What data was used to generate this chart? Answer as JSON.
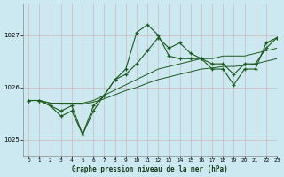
{
  "title": "Graphe pression niveau de la mer (hPa)",
  "bg_color": "#cce8f0",
  "line_color": "#1a5c1a",
  "xlim": [
    -0.5,
    23
  ],
  "ylim": [
    1024.7,
    1027.6
  ],
  "yticks": [
    1025,
    1026,
    1027
  ],
  "xticks": [
    0,
    1,
    2,
    3,
    4,
    5,
    6,
    7,
    8,
    9,
    10,
    11,
    12,
    13,
    14,
    15,
    16,
    17,
    18,
    19,
    20,
    21,
    22,
    23
  ],
  "series_main": {
    "x": [
      0,
      1,
      2,
      3,
      4,
      5,
      6,
      7,
      8,
      9,
      10,
      11,
      12,
      13,
      14,
      15,
      16,
      17,
      18,
      19,
      20,
      21,
      22,
      23
    ],
    "y": [
      1025.75,
      1025.75,
      1025.65,
      1025.55,
      1025.65,
      1025.1,
      1025.65,
      1025.85,
      1026.15,
      1026.35,
      1027.05,
      1027.2,
      1027.0,
      1026.6,
      1026.55,
      1026.55,
      1026.55,
      1026.35,
      1026.35,
      1026.05,
      1026.35,
      1026.35,
      1026.85,
      1026.95
    ]
  },
  "series_wide": {
    "x": [
      0,
      1,
      2,
      3,
      4,
      5,
      6,
      7,
      8,
      9,
      10,
      11,
      12,
      13,
      14,
      15,
      16,
      17,
      18,
      19,
      20,
      21,
      22,
      23
    ],
    "y": [
      1025.75,
      1025.75,
      1025.65,
      1025.45,
      1025.55,
      1025.1,
      1025.55,
      1025.85,
      1026.15,
      1026.25,
      1026.45,
      1026.7,
      1026.95,
      1026.75,
      1026.85,
      1026.65,
      1026.55,
      1026.45,
      1026.45,
      1026.25,
      1026.45,
      1026.45,
      1026.75,
      1026.95
    ]
  },
  "series_smooth1": {
    "x": [
      0,
      1,
      2,
      3,
      4,
      5,
      6,
      7,
      8,
      9,
      10,
      11,
      12,
      13,
      14,
      15,
      16,
      17,
      18,
      19,
      20,
      21,
      22,
      23
    ],
    "y": [
      1025.75,
      1025.75,
      1025.7,
      1025.7,
      1025.7,
      1025.7,
      1025.75,
      1025.85,
      1025.95,
      1026.05,
      1026.15,
      1026.25,
      1026.35,
      1026.4,
      1026.45,
      1026.5,
      1026.55,
      1026.55,
      1026.6,
      1026.6,
      1026.6,
      1026.65,
      1026.7,
      1026.75
    ]
  },
  "series_smooth2": {
    "x": [
      0,
      1,
      2,
      3,
      4,
      5,
      6,
      7,
      8,
      9,
      10,
      11,
      12,
      13,
      14,
      15,
      16,
      17,
      18,
      19,
      20,
      21,
      22,
      23
    ],
    "y": [
      1025.75,
      1025.75,
      1025.7,
      1025.68,
      1025.68,
      1025.68,
      1025.72,
      1025.78,
      1025.86,
      1025.94,
      1026.0,
      1026.08,
      1026.15,
      1026.2,
      1026.25,
      1026.3,
      1026.35,
      1026.37,
      1026.4,
      1026.4,
      1026.42,
      1026.45,
      1026.5,
      1026.55
    ]
  }
}
